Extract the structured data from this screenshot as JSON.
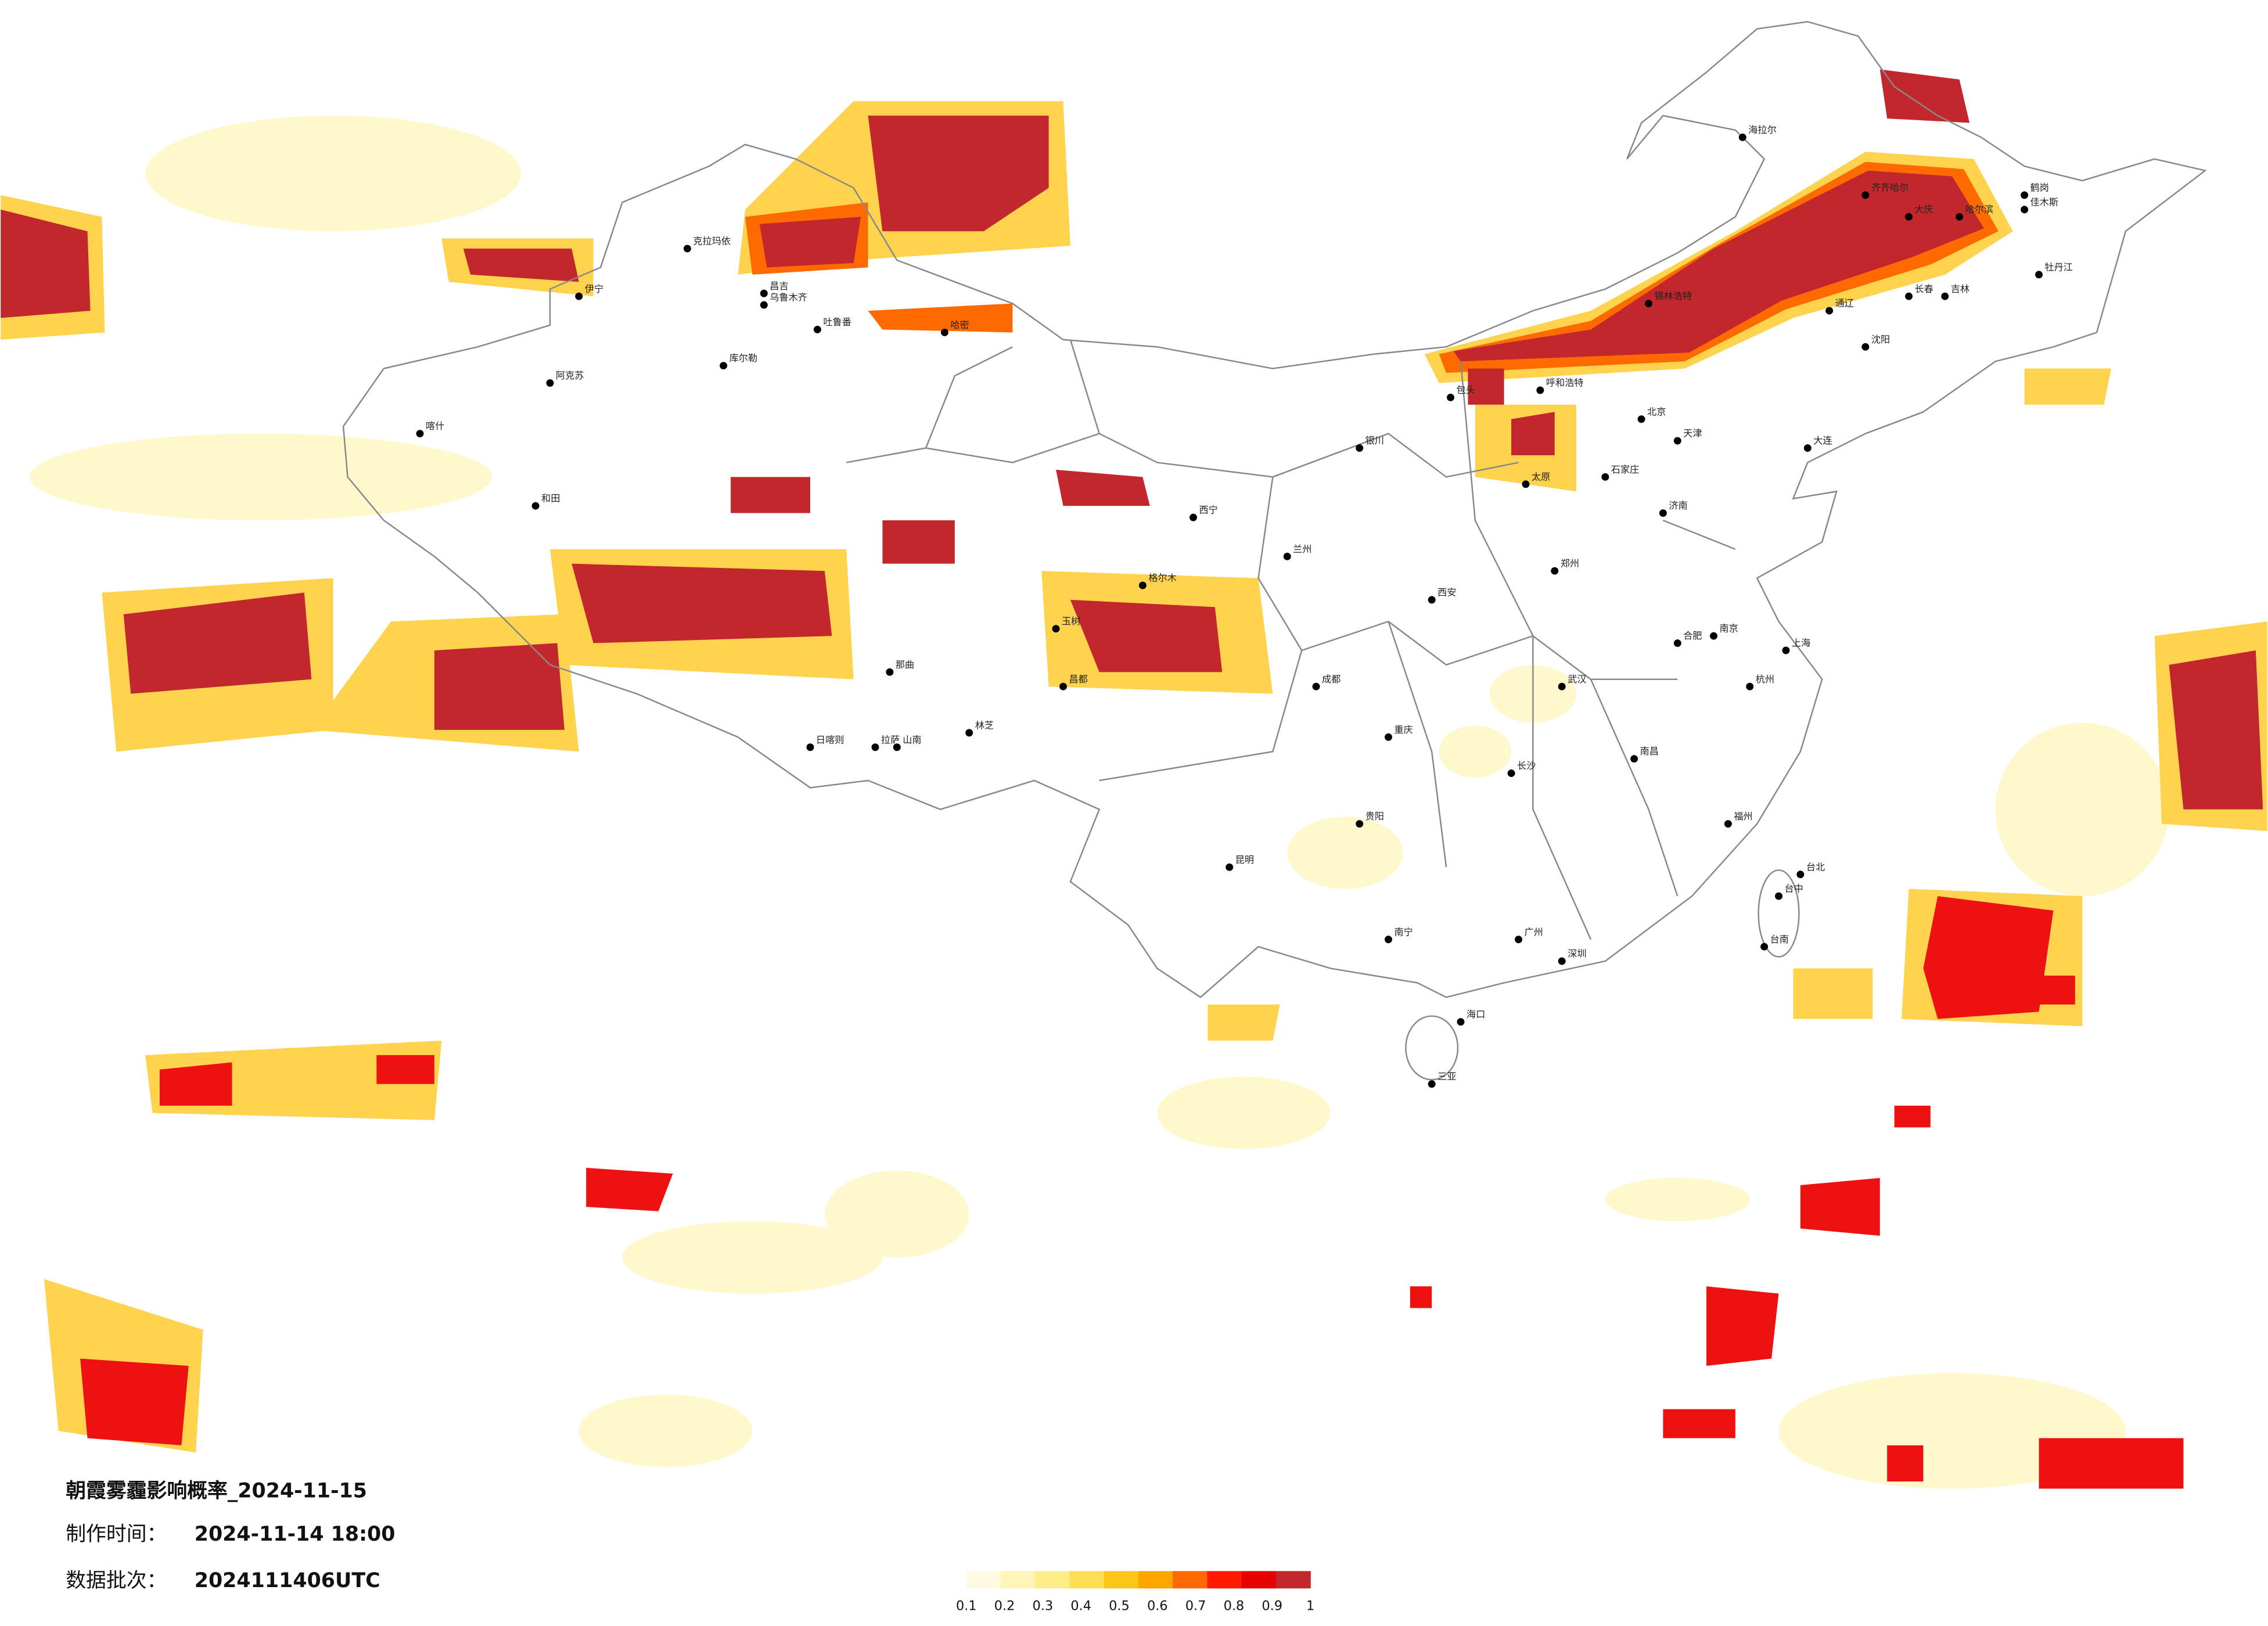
{
  "title": "朝霞雾霾影响概率_2024-11-15",
  "made_label": "制作时间：",
  "made_time": "2024-11-14 18:00",
  "batch_label": "数据批次：",
  "batch": "2024111406UTC",
  "legend": {
    "colors": [
      "#fffbe3",
      "#fff5b8",
      "#ffee88",
      "#ffdd55",
      "#ffc61a",
      "#ffa500",
      "#ff6a00",
      "#ff1a00",
      "#e60000",
      "#c1272d"
    ],
    "ticks": [
      0.1,
      0.2,
      0.3,
      0.4,
      0.5,
      0.6,
      0.7,
      0.8,
      0.9,
      1
    ]
  },
  "cities": [
    "克拉玛依",
    "伊宁",
    "昌吉",
    "乌鲁木齐",
    "吐鲁番",
    "哈密",
    "库尔勒",
    "阿克苏",
    "喀什",
    "和田",
    "日喀则",
    "拉萨",
    "山南",
    "林芝",
    "那曲",
    "海拉尔",
    "齐齐哈尔",
    "大庆",
    "哈尔滨",
    "鹤岗",
    "佳木斯",
    "牡丹江",
    "长春",
    "吉林",
    "沈阳",
    "大连",
    "北京",
    "天津",
    "呼和浩特",
    "包头",
    "银川",
    "西宁",
    "兰州",
    "西安",
    "成都",
    "重庆",
    "贵阳",
    "昆明",
    "南宁",
    "广州",
    "深圳",
    "海口",
    "三亚",
    "长沙",
    "武汉",
    "南京",
    "上海",
    "杭州",
    "福州",
    "台北",
    "台中",
    "台南",
    "济南",
    "郑州",
    "石家庄",
    "太原",
    "南昌",
    "合肥",
    "锡林浩特",
    "通辽",
    "玉树",
    "昌都",
    "格尔木"
  ]
}
